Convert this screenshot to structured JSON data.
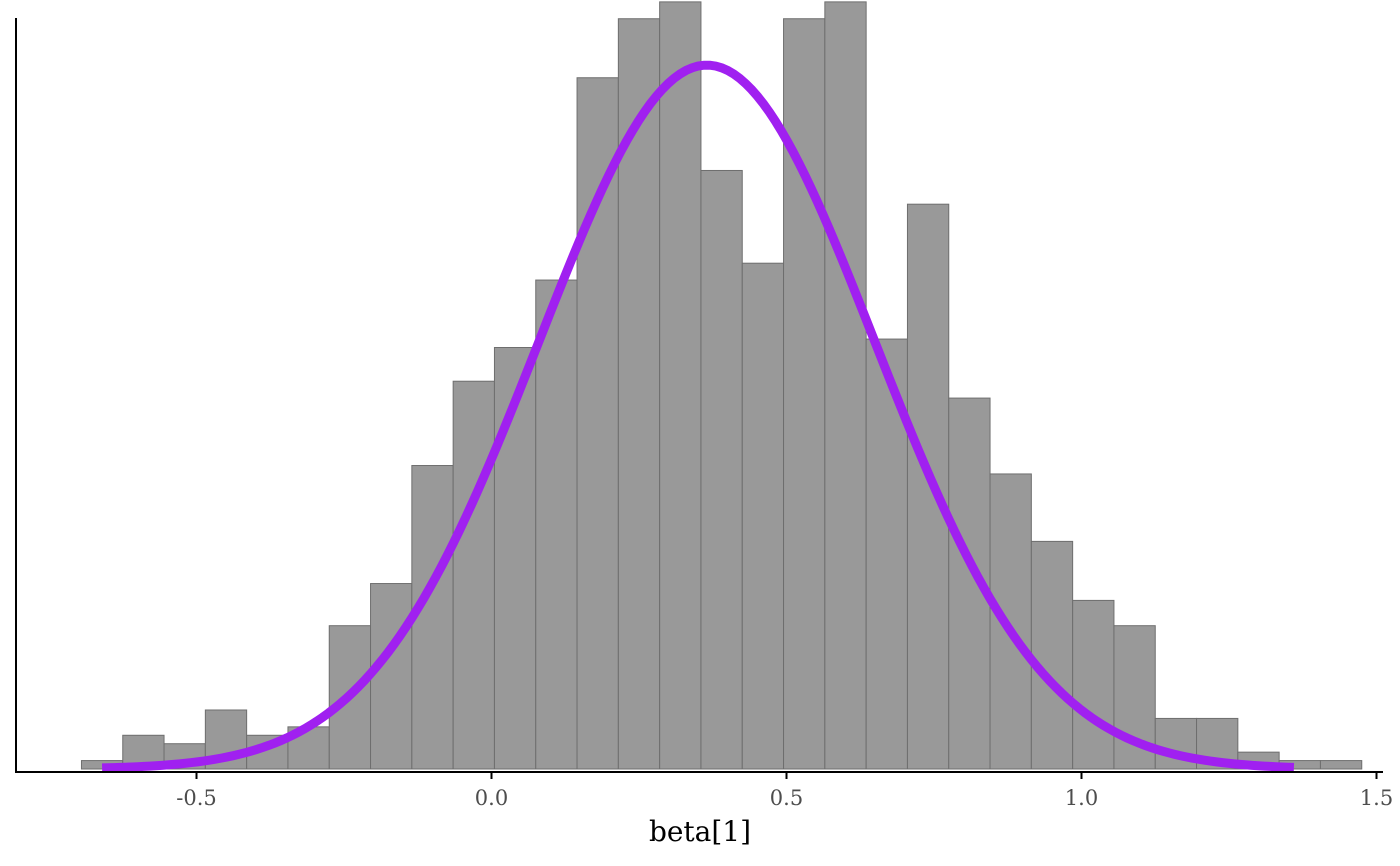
{
  "chart_data": {
    "type": "bar",
    "subtype": "histogram-with-density",
    "title": "",
    "xlabel": "beta[1]",
    "ylabel": "",
    "xlim": [
      -0.8,
      1.5
    ],
    "x_ticks": [
      -0.5,
      0.0,
      0.5,
      1.0,
      1.5
    ],
    "x_tick_labels": [
      "-0.5",
      "0.0",
      "0.5",
      "1.0",
      "1.5"
    ],
    "y_axis_visible": false,
    "grid": false,
    "bin_width": 0.07,
    "bin_start": -0.695,
    "counts": [
      1,
      4,
      3,
      7,
      4,
      5,
      17,
      22,
      36,
      46,
      50,
      58,
      82,
      89,
      91,
      71,
      60,
      89,
      91,
      51,
      67,
      44,
      35,
      27,
      20,
      17,
      6,
      6,
      2,
      1,
      1
    ],
    "density_curve": {
      "mean": 0.365,
      "sd": 0.285,
      "x_range": [
        -0.66,
        1.36
      ],
      "peak_count": 83.5
    },
    "colors": {
      "bar_fill": "#999999",
      "bar_stroke": "#6e6e6e",
      "curve": "#a020f0",
      "axis": "#000000"
    }
  }
}
